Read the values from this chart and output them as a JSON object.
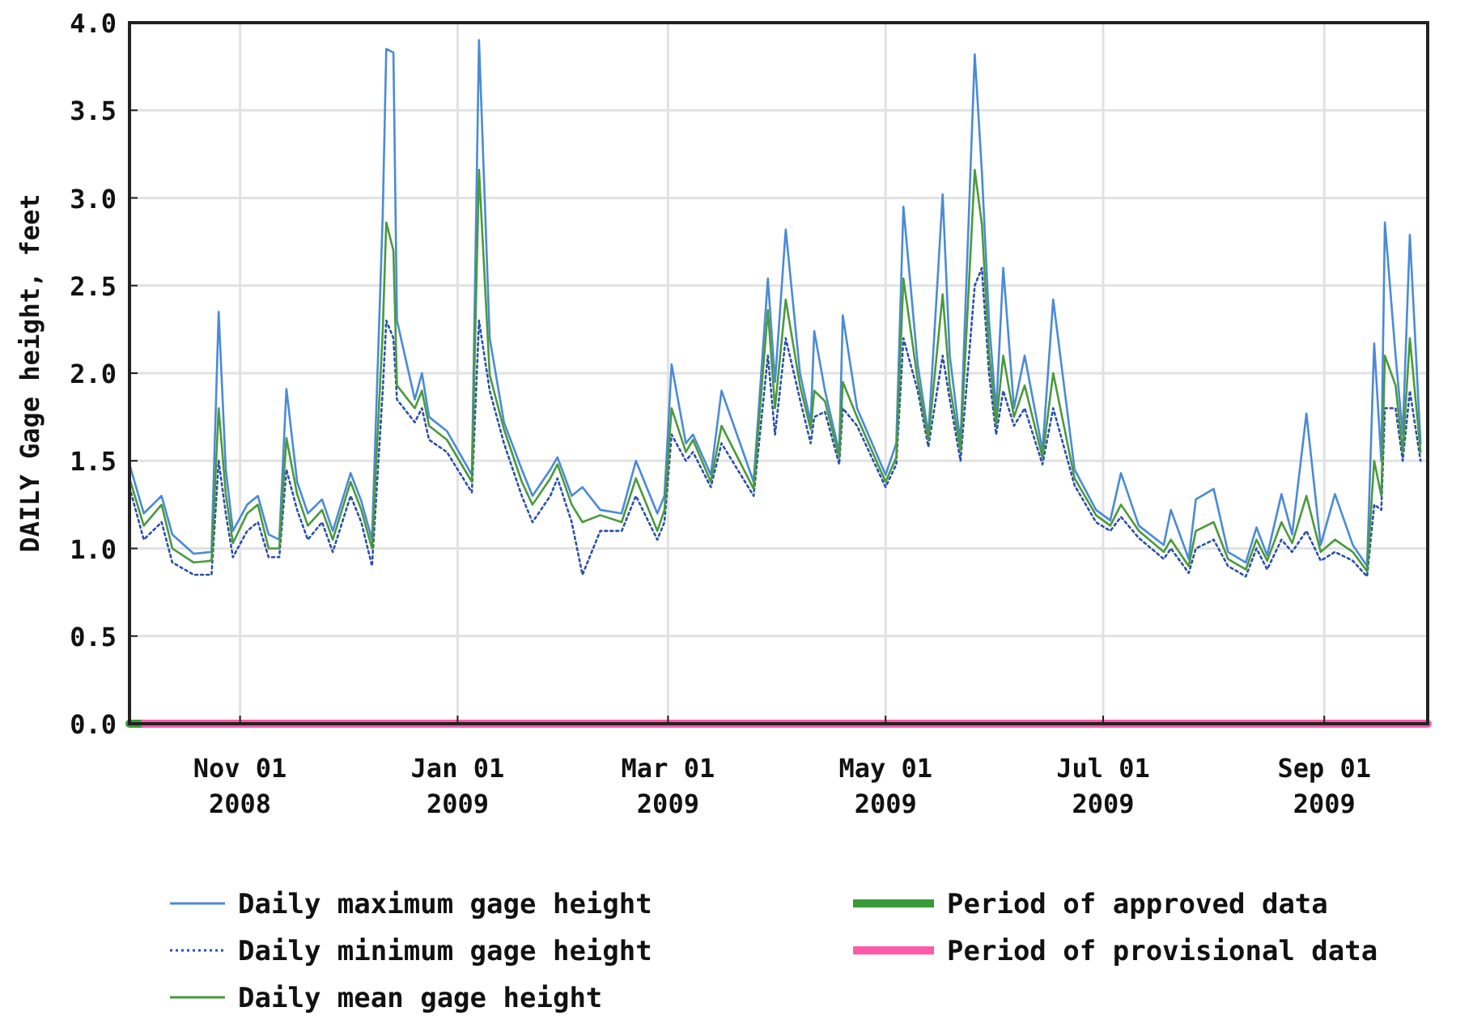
{
  "chart_data": {
    "type": "line",
    "ylabel": "DAILY Gage height, feet",
    "x": [
      "2008-10-01",
      "2008-10-05",
      "2008-10-10",
      "2008-10-13",
      "2008-10-19",
      "2008-10-24",
      "2008-10-26",
      "2008-10-28",
      "2008-10-30",
      "2008-11-03",
      "2008-11-06",
      "2008-11-09",
      "2008-11-12",
      "2008-11-14",
      "2008-11-17",
      "2008-11-20",
      "2008-11-24",
      "2008-11-27",
      "2008-12-02",
      "2008-12-05",
      "2008-12-08",
      "2008-12-11",
      "2008-12-12",
      "2008-12-14",
      "2008-12-15",
      "2008-12-20",
      "2008-12-22",
      "2008-12-24",
      "2008-12-29",
      "2009-01-05",
      "2009-01-07",
      "2009-01-10",
      "2009-01-14",
      "2009-01-19",
      "2009-01-22",
      "2009-01-27",
      "2009-01-29",
      "2009-02-02",
      "2009-02-05",
      "2009-02-10",
      "2009-02-16",
      "2009-02-20",
      "2009-02-26",
      "2009-02-28",
      "2009-03-02",
      "2009-03-06",
      "2009-03-08",
      "2009-03-13",
      "2009-03-16",
      "2009-03-25",
      "2009-03-29",
      "2009-03-31",
      "2009-04-03",
      "2009-04-07",
      "2009-04-10",
      "2009-04-11",
      "2009-04-14",
      "2009-04-18",
      "2009-04-19",
      "2009-04-23",
      "2009-05-01",
      "2009-05-04",
      "2009-05-06",
      "2009-05-10",
      "2009-05-13",
      "2009-05-17",
      "2009-05-19",
      "2009-05-22",
      "2009-05-26",
      "2009-05-28",
      "2009-05-30",
      "2009-06-01",
      "2009-06-03",
      "2009-06-06",
      "2009-06-09",
      "2009-06-14",
      "2009-06-17",
      "2009-06-23",
      "2009-06-29",
      "2009-07-03",
      "2009-07-06",
      "2009-07-11",
      "2009-07-18",
      "2009-07-20",
      "2009-07-25",
      "2009-07-27",
      "2009-08-01",
      "2009-08-05",
      "2009-08-10",
      "2009-08-13",
      "2009-08-16",
      "2009-08-20",
      "2009-08-23",
      "2009-08-27",
      "2009-08-31",
      "2009-09-04",
      "2009-09-09",
      "2009-09-13",
      "2009-09-15",
      "2009-09-17",
      "2009-09-18",
      "2009-09-21",
      "2009-09-23",
      "2009-09-25",
      "2009-09-28"
    ],
    "series": [
      {
        "name": "Daily maximum gage height",
        "color": "#4a8ad8",
        "values": [
          1.48,
          1.2,
          1.3,
          1.08,
          0.97,
          0.98,
          2.35,
          1.45,
          1.1,
          1.25,
          1.3,
          1.08,
          1.05,
          1.91,
          1.38,
          1.2,
          1.28,
          1.1,
          1.43,
          1.27,
          1.05,
          2.9,
          3.85,
          3.83,
          2.3,
          1.85,
          2.0,
          1.75,
          1.67,
          1.42,
          3.9,
          2.2,
          1.72,
          1.45,
          1.3,
          1.45,
          1.52,
          1.3,
          1.35,
          1.22,
          1.2,
          1.5,
          1.2,
          1.3,
          2.05,
          1.6,
          1.65,
          1.42,
          1.9,
          1.38,
          2.54,
          1.95,
          2.82,
          2.0,
          1.72,
          2.24,
          1.9,
          1.55,
          2.33,
          1.8,
          1.42,
          1.6,
          2.95,
          2.05,
          1.65,
          3.02,
          2.1,
          1.6,
          3.82,
          3.15,
          2.3,
          1.78,
          2.6,
          1.8,
          2.1,
          1.56,
          2.42,
          1.45,
          1.22,
          1.16,
          1.43,
          1.13,
          1.02,
          1.22,
          0.94,
          1.28,
          1.34,
          0.98,
          0.92,
          1.12,
          0.96,
          1.31,
          1.08,
          1.77,
          1.02,
          1.31,
          1.02,
          0.9,
          2.17,
          1.5,
          2.86,
          2.1,
          1.65,
          2.79,
          1.6
        ]
      },
      {
        "name": "Daily minimum gage height",
        "color": "#2a4fb0",
        "line_style": "dotted",
        "values": [
          1.35,
          1.05,
          1.15,
          0.92,
          0.85,
          0.85,
          1.5,
          1.2,
          0.95,
          1.1,
          1.15,
          0.95,
          0.95,
          1.45,
          1.22,
          1.05,
          1.15,
          0.98,
          1.3,
          1.15,
          0.9,
          1.9,
          2.3,
          2.2,
          1.85,
          1.72,
          1.8,
          1.62,
          1.55,
          1.32,
          2.3,
          1.9,
          1.6,
          1.3,
          1.15,
          1.3,
          1.4,
          1.15,
          0.85,
          1.1,
          1.1,
          1.3,
          1.05,
          1.15,
          1.65,
          1.5,
          1.55,
          1.35,
          1.6,
          1.3,
          2.1,
          1.65,
          2.2,
          1.85,
          1.6,
          1.75,
          1.78,
          1.48,
          1.8,
          1.7,
          1.35,
          1.48,
          2.2,
          1.9,
          1.58,
          2.1,
          1.85,
          1.5,
          2.5,
          2.6,
          2.0,
          1.65,
          1.9,
          1.7,
          1.8,
          1.48,
          1.8,
          1.36,
          1.15,
          1.1,
          1.18,
          1.06,
          0.94,
          1.0,
          0.86,
          1.0,
          1.05,
          0.9,
          0.84,
          1.0,
          0.88,
          1.05,
          0.98,
          1.1,
          0.93,
          0.98,
          0.93,
          0.84,
          1.25,
          1.22,
          1.8,
          1.8,
          1.5,
          1.9,
          1.5
        ]
      },
      {
        "name": "Daily mean gage height",
        "color": "#4a9a3a",
        "values": [
          1.4,
          1.13,
          1.25,
          1.0,
          0.92,
          0.93,
          1.8,
          1.31,
          1.03,
          1.2,
          1.25,
          1.0,
          1.0,
          1.63,
          1.31,
          1.13,
          1.22,
          1.05,
          1.38,
          1.22,
          1.0,
          2.24,
          2.86,
          2.7,
          1.93,
          1.8,
          1.9,
          1.7,
          1.62,
          1.38,
          3.16,
          1.99,
          1.68,
          1.38,
          1.25,
          1.4,
          1.48,
          1.25,
          1.15,
          1.19,
          1.15,
          1.4,
          1.1,
          1.22,
          1.8,
          1.55,
          1.62,
          1.38,
          1.7,
          1.34,
          2.36,
          1.8,
          2.42,
          1.93,
          1.68,
          1.9,
          1.84,
          1.52,
          1.95,
          1.75,
          1.38,
          1.52,
          2.54,
          1.96,
          1.62,
          2.45,
          1.93,
          1.56,
          3.16,
          2.85,
          2.12,
          1.71,
          2.1,
          1.75,
          1.93,
          1.52,
          2.0,
          1.4,
          1.19,
          1.13,
          1.25,
          1.1,
          0.98,
          1.05,
          0.9,
          1.1,
          1.15,
          0.94,
          0.88,
          1.05,
          0.93,
          1.15,
          1.03,
          1.3,
          0.98,
          1.05,
          0.98,
          0.87,
          1.5,
          1.3,
          2.1,
          1.93,
          1.55,
          2.2,
          1.55
        ]
      },
      {
        "name": "Period of approved data",
        "type": "step",
        "color": "#3a9a3a",
        "x": [
          "2008-10-01",
          "2008-10-05"
        ],
        "values": [
          0,
          0
        ]
      },
      {
        "name": "Period of provisional data",
        "type": "step",
        "color": "#ff5aa8",
        "x": [
          "2008-10-05",
          "2009-09-30"
        ],
        "values": [
          0,
          0
        ]
      }
    ],
    "xlim": [
      "2008-10-01",
      "2009-09-30"
    ],
    "xticks": [
      {
        "value": "2008-11-01",
        "label": "Nov 01\n2008"
      },
      {
        "value": "2009-01-01",
        "label": "Jan 01\n2009"
      },
      {
        "value": "2009-03-01",
        "label": "Mar 01\n2009"
      },
      {
        "value": "2009-05-01",
        "label": "May 01\n2009"
      },
      {
        "value": "2009-07-01",
        "label": "Jul 01\n2009"
      },
      {
        "value": "2009-09-01",
        "label": "Sep 01\n2009"
      }
    ],
    "ylim": [
      0,
      4
    ],
    "yticks": [
      {
        "value": 0,
        "label": "0.0"
      },
      0.5,
      {
        "value": 1,
        "label": "1.0"
      },
      1.5,
      {
        "value": 2,
        "label": "2.0"
      },
      2.5,
      {
        "value": 3,
        "label": "3.0"
      },
      3.5,
      {
        "value": 4,
        "label": "4.0"
      }
    ],
    "grid": true,
    "legend": "bottom",
    "marker": "none",
    "line_style": "solid"
  }
}
